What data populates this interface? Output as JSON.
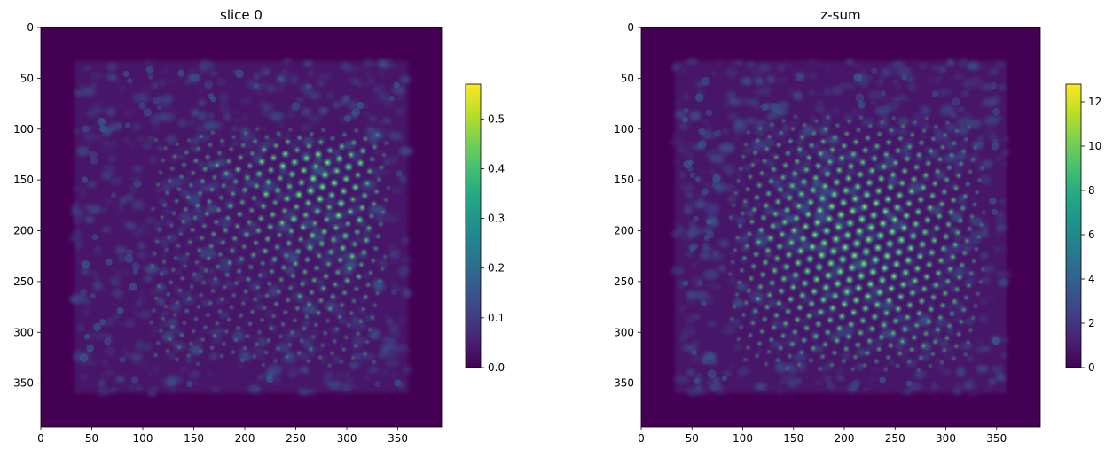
{
  "chart_data": [
    {
      "type": "heatmap",
      "title": "slice 0",
      "xlim": [
        0,
        393
      ],
      "ylim": [
        393,
        0
      ],
      "x_ticks": [
        0,
        50,
        100,
        150,
        200,
        250,
        300,
        350
      ],
      "y_ticks": [
        0,
        50,
        100,
        150,
        200,
        250,
        300,
        350
      ],
      "colorbar": {
        "colormap": "viridis",
        "range": [
          0,
          0.57
        ],
        "ticks": [
          0.0,
          0.1,
          0.2,
          0.3,
          0.4,
          0.5
        ],
        "tick_labels": [
          "0.0",
          "0.1",
          "0.2",
          "0.3",
          "0.4",
          "0.5"
        ]
      },
      "image": {
        "content": "lattice of bright spots in a noisy square region",
        "data_region": [
          33,
          360
        ],
        "lattice_region": [
          95,
          345
        ],
        "peak_value": 0.57,
        "brightest_area": "upper-right of lattice"
      }
    },
    {
      "type": "heatmap",
      "title": "z-sum",
      "xlim": [
        0,
        393
      ],
      "ylim": [
        393,
        0
      ],
      "x_ticks": [
        0,
        50,
        100,
        150,
        200,
        250,
        300,
        350
      ],
      "y_ticks": [
        0,
        50,
        100,
        150,
        200,
        250,
        300,
        350
      ],
      "colorbar": {
        "colormap": "viridis",
        "range": [
          0,
          12.8
        ],
        "ticks": [
          0,
          2,
          4,
          6,
          8,
          10,
          12
        ],
        "tick_labels": [
          "0",
          "2",
          "4",
          "6",
          "8",
          "10",
          "12"
        ]
      },
      "image": {
        "content": "lattice of bright spots in a noisy square region",
        "data_region": [
          33,
          360
        ],
        "lattice_region": [
          80,
          345
        ],
        "peak_value": 12.8,
        "brightest_area": "center of lattice"
      }
    }
  ]
}
